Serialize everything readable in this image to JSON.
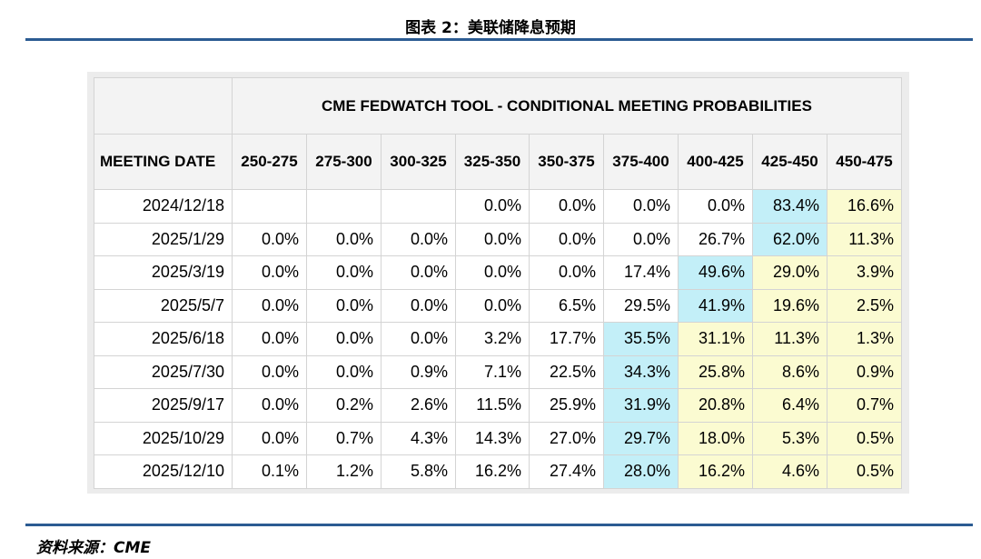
{
  "figure": {
    "title": "图表 2：美联储降息预期",
    "source": "资料来源：CME"
  },
  "table": {
    "banner": "CME FEDWATCH TOOL - CONDITIONAL MEETING PROBABILITIES",
    "date_header": "MEETING DATE",
    "columns": [
      "250-275",
      "275-300",
      "300-325",
      "325-350",
      "350-375",
      "375-400",
      "400-425",
      "425-450",
      "450-475"
    ],
    "rows": [
      {
        "date": "2024/12/18",
        "values": [
          "",
          "",
          "",
          "0.0%",
          "0.0%",
          "0.0%",
          "0.0%",
          "83.4%",
          "16.6%"
        ],
        "highlight": [
          "",
          "",
          "",
          "",
          "",
          "",
          "",
          "blue",
          "yellow"
        ]
      },
      {
        "date": "2025/1/29",
        "values": [
          "0.0%",
          "0.0%",
          "0.0%",
          "0.0%",
          "0.0%",
          "0.0%",
          "26.7%",
          "62.0%",
          "11.3%"
        ],
        "highlight": [
          "",
          "",
          "",
          "",
          "",
          "",
          "",
          "blue",
          "yellow"
        ]
      },
      {
        "date": "2025/3/19",
        "values": [
          "0.0%",
          "0.0%",
          "0.0%",
          "0.0%",
          "0.0%",
          "17.4%",
          "49.6%",
          "29.0%",
          "3.9%"
        ],
        "highlight": [
          "",
          "",
          "",
          "",
          "",
          "",
          "blue",
          "yellow",
          "yellow"
        ]
      },
      {
        "date": "2025/5/7",
        "values": [
          "0.0%",
          "0.0%",
          "0.0%",
          "0.0%",
          "6.5%",
          "29.5%",
          "41.9%",
          "19.6%",
          "2.5%"
        ],
        "highlight": [
          "",
          "",
          "",
          "",
          "",
          "",
          "blue",
          "yellow",
          "yellow"
        ]
      },
      {
        "date": "2025/6/18",
        "values": [
          "0.0%",
          "0.0%",
          "0.0%",
          "3.2%",
          "17.7%",
          "35.5%",
          "31.1%",
          "11.3%",
          "1.3%"
        ],
        "highlight": [
          "",
          "",
          "",
          "",
          "",
          "blue",
          "yellow",
          "yellow",
          "yellow"
        ]
      },
      {
        "date": "2025/7/30",
        "values": [
          "0.0%",
          "0.0%",
          "0.9%",
          "7.1%",
          "22.5%",
          "34.3%",
          "25.8%",
          "8.6%",
          "0.9%"
        ],
        "highlight": [
          "",
          "",
          "",
          "",
          "",
          "blue",
          "yellow",
          "yellow",
          "yellow"
        ]
      },
      {
        "date": "2025/9/17",
        "values": [
          "0.0%",
          "0.2%",
          "2.6%",
          "11.5%",
          "25.9%",
          "31.9%",
          "20.8%",
          "6.4%",
          "0.7%"
        ],
        "highlight": [
          "",
          "",
          "",
          "",
          "",
          "blue",
          "yellow",
          "yellow",
          "yellow"
        ]
      },
      {
        "date": "2025/10/29",
        "values": [
          "0.0%",
          "0.7%",
          "4.3%",
          "14.3%",
          "27.0%",
          "29.7%",
          "18.0%",
          "5.3%",
          "0.5%"
        ],
        "highlight": [
          "",
          "",
          "",
          "",
          "",
          "blue",
          "yellow",
          "yellow",
          "yellow"
        ]
      },
      {
        "date": "2025/12/10",
        "values": [
          "0.1%",
          "1.2%",
          "5.8%",
          "16.2%",
          "27.4%",
          "28.0%",
          "16.2%",
          "4.6%",
          "0.5%"
        ],
        "highlight": [
          "",
          "",
          "",
          "",
          "",
          "blue",
          "yellow",
          "yellow",
          "yellow"
        ]
      }
    ]
  },
  "colors": {
    "rule": "#2b5b92",
    "blue_highlight": "#c3eff8",
    "yellow_highlight": "#fbfbd1"
  }
}
